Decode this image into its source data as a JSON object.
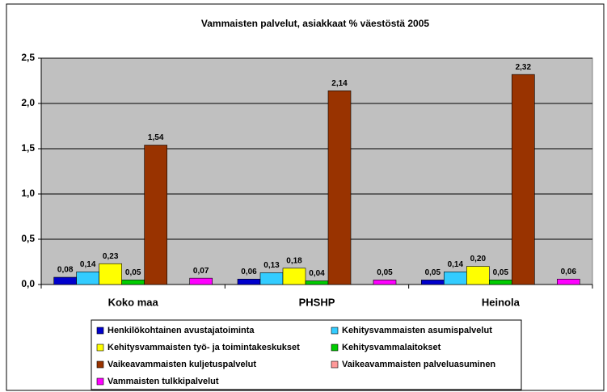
{
  "chart_data": {
    "type": "bar",
    "title": "Vammaisten palvelut, asiakkaat % väestöstä 2005",
    "categories": [
      "Koko maa",
      "PHSHP",
      "Heinola"
    ],
    "series": [
      {
        "name": "Henkilökohtainen avustajatoiminta",
        "color": "#0000cc",
        "values": [
          0.08,
          0.06,
          0.05
        ],
        "value_labels": [
          "0,08",
          "0,06",
          "0,05"
        ]
      },
      {
        "name": "Kehitysvammaisten asumispalvelut",
        "color": "#33ccff",
        "values": [
          0.14,
          0.13,
          0.14
        ],
        "value_labels": [
          "0,14",
          "0,13",
          "0,14"
        ]
      },
      {
        "name": "Kehitysvammaisten työ- ja toimintakeskukset",
        "color": "#ffff00",
        "values": [
          0.23,
          0.18,
          0.2
        ],
        "value_labels": [
          "0,23",
          "0,18",
          "0,20"
        ]
      },
      {
        "name": "Kehitysvammalaitokset",
        "color": "#00cc00",
        "values": [
          0.05,
          0.04,
          0.05
        ],
        "value_labels": [
          "0,05",
          "0,04",
          "0,05"
        ]
      },
      {
        "name": "Vaikeavammaisten kuljetuspalvelut",
        "color": "#993300",
        "values": [
          1.54,
          2.14,
          2.32
        ],
        "value_labels": [
          "1,54",
          "2,14",
          "2,32"
        ]
      },
      {
        "name": "Vaikeavammaisten palveluasuminen",
        "color": "#ff9999",
        "values": [
          null,
          null,
          null
        ],
        "value_labels": [
          null,
          null,
          null
        ]
      },
      {
        "name": "Vammaisten tulkkipalvelut",
        "color": "#ff00ff",
        "values": [
          0.07,
          0.05,
          0.06
        ],
        "value_labels": [
          "0,07",
          "0,05",
          "0,06"
        ]
      }
    ],
    "ylim": [
      0,
      2.5
    ],
    "yticks": [
      {
        "value": 0,
        "label": "0,0"
      },
      {
        "value": 0.5,
        "label": "0,5"
      },
      {
        "value": 1,
        "label": "1,0"
      },
      {
        "value": 1.5,
        "label": "1,5"
      },
      {
        "value": 2,
        "label": "2,0"
      },
      {
        "value": 2.5,
        "label": "2,5"
      }
    ],
    "grid": true,
    "legend": "bottom"
  }
}
